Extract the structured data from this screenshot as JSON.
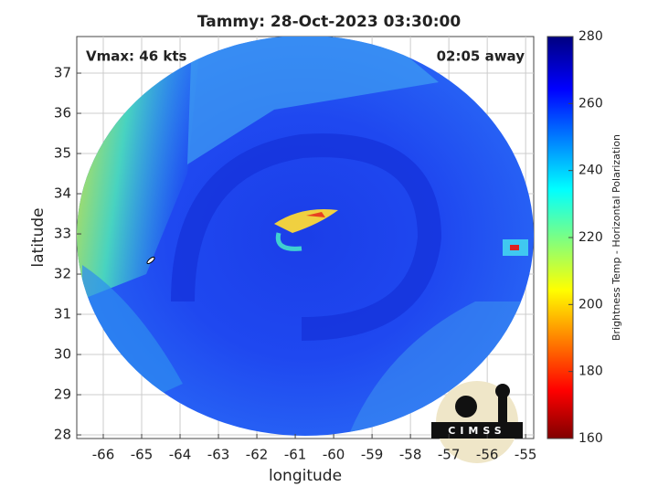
{
  "chart_data": {
    "type": "swath-map",
    "title": "Tammy: 28-Oct-2023 03:30:00",
    "annotations": {
      "left": "Vmax: 46 kts",
      "right": "02:05 away"
    },
    "xlabel": "longitude",
    "ylabel": "latitude",
    "xlim": [
      -66.69,
      -54.79
    ],
    "ylim": [
      27.91,
      37.91
    ],
    "xticks": [
      -66,
      -65,
      -64,
      -63,
      -62,
      -61,
      -60,
      -59,
      -58,
      -57,
      -56,
      -55
    ],
    "yticks": [
      28,
      29,
      30,
      31,
      32,
      33,
      34,
      35,
      36,
      37
    ],
    "grid": true,
    "colorbar": {
      "label": "Brightness Temp - Horizontal Polarization",
      "clim": [
        160,
        280
      ],
      "ticks": [
        160,
        180,
        200,
        220,
        240,
        260,
        280
      ]
    },
    "logo": "CIMSS"
  }
}
